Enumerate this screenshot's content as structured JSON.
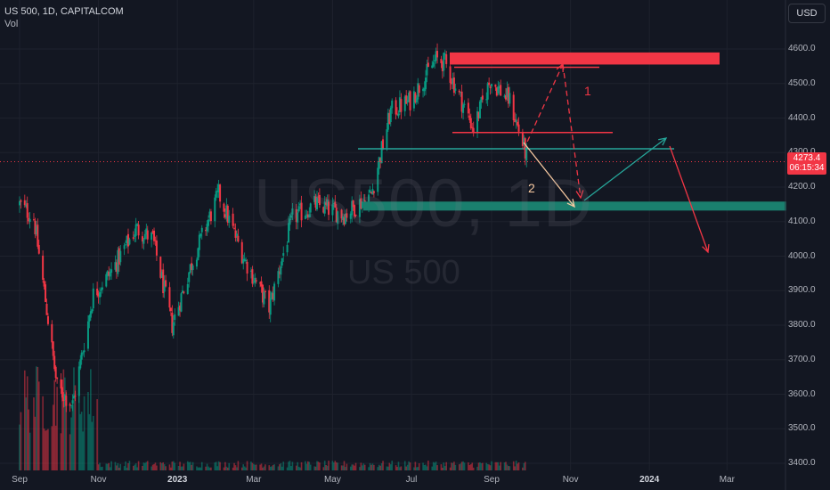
{
  "header": {
    "symbol_line": "US 500, 1D, CAPITALCOM",
    "indicator": "Vol",
    "currency_button": "USD"
  },
  "watermark": {
    "main": "US500, 1D",
    "sub": "US 500"
  },
  "price_axis": [
    "4600.0",
    "4500.0",
    "4400.0",
    "4300.0",
    "4200.0",
    "4100.0",
    "4000.0",
    "3900.0",
    "3800.0",
    "3700.0",
    "3600.0",
    "3500.0",
    "3400.0"
  ],
  "time_axis": [
    {
      "label": "Sep",
      "bold": false
    },
    {
      "label": "Nov",
      "bold": false
    },
    {
      "label": "2023",
      "bold": true
    },
    {
      "label": "Mar",
      "bold": false
    },
    {
      "label": "May",
      "bold": false
    },
    {
      "label": "Jul",
      "bold": false
    },
    {
      "label": "Sep",
      "bold": false
    },
    {
      "label": "Nov",
      "bold": false
    },
    {
      "label": "2024",
      "bold": true
    },
    {
      "label": "Mar",
      "bold": false
    }
  ],
  "current_price": {
    "value": "4273.4",
    "countdown": "06:15:34"
  },
  "annotations": {
    "scenario_1": "1",
    "scenario_2": "2"
  },
  "colors": {
    "background": "#131722",
    "up": "#089981",
    "down": "#f23645",
    "resistance_zone": "#f23645",
    "support_zone": "#22ab94",
    "path_1": "#f23645",
    "path_2": "#f7c9a1",
    "teal_line": "#26a69a"
  },
  "chart_data": {
    "type": "candlestick",
    "symbol": "US 500",
    "interval": "1D",
    "x_range": [
      "2022-09",
      "2024-03"
    ],
    "y_range": [
      3390,
      4640
    ],
    "close_path": [
      [
        "2022-09-01",
        4150
      ],
      [
        "2022-09-12",
        4110
      ],
      [
        "2022-09-20",
        3900
      ],
      [
        "2022-09-30",
        3620
      ],
      [
        "2022-10-12",
        3570
      ],
      [
        "2022-10-28",
        3890
      ],
      [
        "2022-11-10",
        3950
      ],
      [
        "2022-11-30",
        4080
      ],
      [
        "2022-12-13",
        4050
      ],
      [
        "2022-12-28",
        3800
      ],
      [
        "2023-01-13",
        3990
      ],
      [
        "2023-02-02",
        4180
      ],
      [
        "2023-02-22",
        3990
      ],
      [
        "2023-03-13",
        3850
      ],
      [
        "2023-03-31",
        4110
      ],
      [
        "2023-04-18",
        4150
      ],
      [
        "2023-05-10",
        4120
      ],
      [
        "2023-05-31",
        4180
      ],
      [
        "2023-06-15",
        4420
      ],
      [
        "2023-06-30",
        4450
      ],
      [
        "2023-07-20",
        4570
      ],
      [
        "2023-07-27",
        4560
      ],
      [
        "2023-08-18",
        4370
      ],
      [
        "2023-08-31",
        4510
      ],
      [
        "2023-09-15",
        4450
      ],
      [
        "2023-09-28",
        4290
      ],
      [
        "2023-10-03",
        4273.4
      ]
    ],
    "resistance_zone": [
      4555,
      4590
    ],
    "support_zone": [
      4132,
      4158
    ],
    "horizontal_levels": [
      4547,
      4358,
      4311
    ],
    "projection_1": [
      [
        "2023-10-03",
        4311
      ],
      [
        "2023-10-28",
        4560
      ],
      [
        "2023-11-05",
        4165
      ]
    ],
    "projection_2": [
      [
        "2023-10-03",
        4311
      ],
      [
        "2023-11-05",
        4140
      ],
      [
        "2023-12-26",
        4345
      ],
      [
        "2024-02-16",
        4010
      ]
    ],
    "current_price": 4273.4
  }
}
